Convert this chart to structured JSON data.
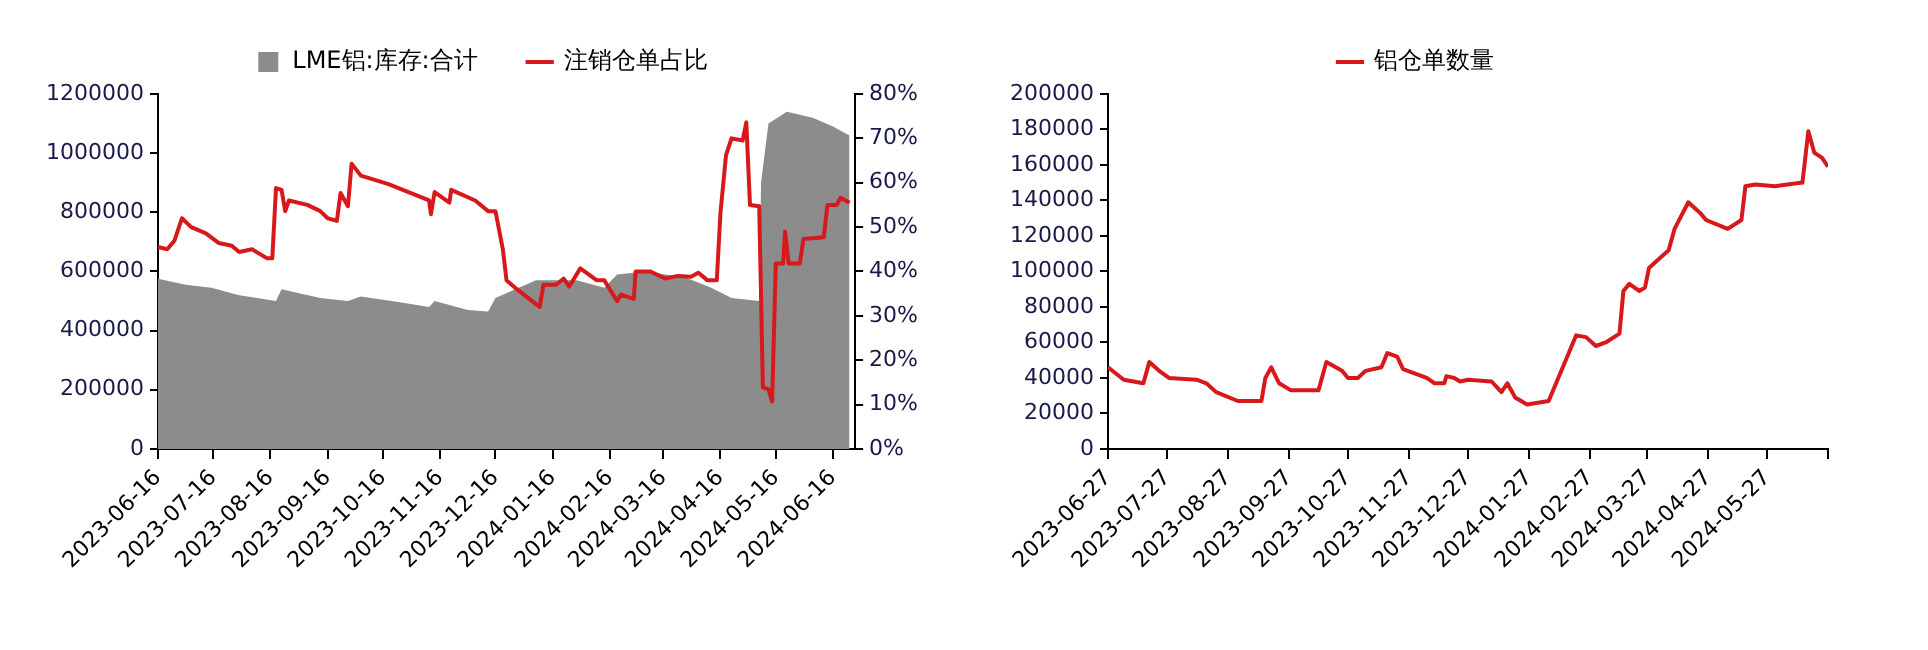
{
  "chart_data": [
    {
      "type": "line",
      "legend": "top",
      "grid": false,
      "marker": "none",
      "xlim": [
        "2023-06-16",
        "2024-06-28"
      ],
      "xticks": [
        "2023-06-16",
        "2023-07-16",
        "2023-08-16",
        "2023-09-16",
        "2023-10-16",
        "2023-11-16",
        "2023-12-16",
        "2024-01-16",
        "2024-02-16",
        "2024-03-16",
        "2024-04-16",
        "2024-05-16",
        "2024-06-16"
      ],
      "ylim": [
        0,
        1200000
      ],
      "yticks": [
        0,
        200000,
        400000,
        600000,
        800000,
        1000000,
        1200000
      ],
      "y2lim": [
        0,
        80
      ],
      "y2ticks": [
        {
          "value": 0,
          "label": "0%"
        },
        {
          "value": 10,
          "label": "10%"
        },
        {
          "value": 20,
          "label": "20%"
        },
        {
          "value": 30,
          "label": "30%"
        },
        {
          "value": 40,
          "label": "40%"
        },
        {
          "value": 50,
          "label": "50%"
        },
        {
          "value": 60,
          "label": "60%"
        },
        {
          "value": 70,
          "label": "70%"
        },
        {
          "value": 80,
          "label": "80%"
        }
      ],
      "series": [
        {
          "name": "LME铝:库存:合计",
          "type": "area",
          "color": "#8c8c8c",
          "x": [
            "2023-06-16",
            "2023-07-01",
            "2023-07-15",
            "2023-07-30",
            "2023-08-19",
            "2023-08-22",
            "2023-09-12",
            "2023-09-27",
            "2023-10-04",
            "2023-10-26",
            "2023-11-10",
            "2023-11-13",
            "2023-12-01",
            "2023-12-12",
            "2023-12-16",
            "2023-12-23",
            "2024-01-07",
            "2024-01-29",
            "2024-02-13",
            "2024-02-20",
            "2024-03-06",
            "2024-03-28",
            "2024-04-11",
            "2024-04-22",
            "2024-05-07",
            "2024-05-08",
            "2024-05-12",
            "2024-05-22",
            "2024-06-05",
            "2024-06-16",
            "2024-06-25"
          ],
          "values": [
            575000,
            555000,
            545000,
            520000,
            500000,
            540000,
            510000,
            500000,
            515000,
            495000,
            480000,
            500000,
            470000,
            465000,
            510000,
            530000,
            570000,
            570000,
            545000,
            590000,
            600000,
            580000,
            545000,
            510000,
            500000,
            900000,
            1100000,
            1140000,
            1120000,
            1090000,
            1060000
          ]
        },
        {
          "name": "注销仓单占比",
          "type": "line",
          "axis": "y2",
          "color": "#d7191c",
          "x": [
            "2023-06-16",
            "2023-06-21",
            "2023-06-25",
            "2023-06-29",
            "2023-07-04",
            "2023-07-12",
            "2023-07-19",
            "2023-07-26",
            "2023-07-30",
            "2023-08-06",
            "2023-08-14",
            "2023-08-17",
            "2023-08-19",
            "2023-08-22",
            "2023-08-24",
            "2023-08-26",
            "2023-09-05",
            "2023-09-12",
            "2023-09-16",
            "2023-09-21",
            "2023-09-23",
            "2023-09-27",
            "2023-09-29",
            "2023-10-04",
            "2023-10-19",
            "2023-11-10",
            "2023-11-11",
            "2023-11-13",
            "2023-11-21",
            "2023-11-22",
            "2023-12-05",
            "2023-12-12",
            "2023-12-16",
            "2023-12-20",
            "2023-12-22",
            "2023-12-27",
            "2024-01-09",
            "2024-01-11",
            "2024-01-18",
            "2024-01-22",
            "2024-01-25",
            "2024-01-31",
            "2024-02-09",
            "2024-02-13",
            "2024-02-20",
            "2024-02-22",
            "2024-02-29",
            "2024-03-01",
            "2024-03-09",
            "2024-03-17",
            "2024-03-24",
            "2024-03-31",
            "2024-04-04",
            "2024-04-09",
            "2024-04-14",
            "2024-04-16",
            "2024-04-19",
            "2024-04-22",
            "2024-04-28",
            "2024-04-30",
            "2024-05-02",
            "2024-05-07",
            "2024-05-09",
            "2024-05-12",
            "2024-05-14",
            "2024-05-16",
            "2024-05-20",
            "2024-05-21",
            "2024-05-23",
            "2024-05-29",
            "2024-05-31",
            "2024-06-11",
            "2024-06-13",
            "2024-06-18",
            "2024-06-20",
            "2024-06-25"
          ],
          "values": [
            45.5,
            45,
            47,
            52,
            50,
            48.6,
            46.4,
            45.8,
            44.4,
            45,
            43,
            43,
            58.8,
            58.4,
            53.6,
            56,
            55,
            53.6,
            52,
            51.4,
            57.7,
            54.7,
            64.3,
            61.6,
            59.7,
            56,
            52.9,
            57.9,
            55.5,
            58.4,
            56,
            53.6,
            53.6,
            45,
            38,
            36.2,
            32,
            37,
            37,
            38.4,
            36.6,
            40.7,
            38,
            38,
            33.3,
            34.8,
            33.8,
            40,
            40,
            38.4,
            39,
            38.8,
            39.7,
            38,
            38,
            53.2,
            66.2,
            70,
            69.5,
            73.6,
            55,
            54.7,
            13.9,
            13.5,
            10.7,
            41.8,
            41.8,
            49,
            41.8,
            41.8,
            47.3,
            47.7,
            55,
            55,
            56.6,
            55.5
          ]
        }
      ]
    },
    {
      "type": "line",
      "legend": "top",
      "grid": false,
      "marker": "none",
      "xlim": [
        "2023-06-27",
        "2024-06-27"
      ],
      "xticks": [
        "2023-06-27",
        "2023-07-27",
        "2023-08-27",
        "2023-09-27",
        "2023-10-27",
        "2023-11-27",
        "2023-12-27",
        "2024-01-27",
        "2024-02-27",
        "2024-03-27",
        "2024-04-27",
        "2024-05-27",
        {
          "value": "2024-06-27",
          "label": null
        }
      ],
      "ylim": [
        0,
        200000
      ],
      "yticks": [
        0,
        20000,
        40000,
        60000,
        80000,
        100000,
        120000,
        140000,
        160000,
        180000,
        200000
      ],
      "series": [
        {
          "name": "铝仓单数量",
          "type": "line",
          "color": "#d7191c",
          "x": [
            "2023-06-27",
            "2023-07-05",
            "2023-07-15",
            "2023-07-18",
            "2023-07-23",
            "2023-07-28",
            "2023-08-11",
            "2023-08-16",
            "2023-08-21",
            "2023-09-01",
            "2023-09-13",
            "2023-09-15",
            "2023-09-18",
            "2023-09-22",
            "2023-09-28",
            "2023-10-12",
            "2023-10-16",
            "2023-10-24",
            "2023-10-27",
            "2023-11-01",
            "2023-11-05",
            "2023-11-13",
            "2023-11-16",
            "2023-11-21",
            "2023-11-24",
            "2023-12-06",
            "2023-12-10",
            "2023-12-15",
            "2023-12-16",
            "2023-12-20",
            "2023-12-23",
            "2023-12-27",
            "2024-01-08",
            "2024-01-13",
            "2024-01-16",
            "2024-01-20",
            "2024-01-26",
            "2024-02-06",
            "2024-02-20",
            "2024-02-25",
            "2024-03-01",
            "2024-03-06",
            "2024-03-13",
            "2024-03-15",
            "2024-03-18",
            "2024-03-23",
            "2024-03-26",
            "2024-03-28",
            "2024-04-07",
            "2024-04-10",
            "2024-04-17",
            "2024-04-23",
            "2024-04-26",
            "2024-05-07",
            "2024-05-14",
            "2024-05-16",
            "2024-05-21",
            "2024-05-31",
            "2024-06-13",
            "2024-06-14",
            "2024-06-17",
            "2024-06-20",
            "2024-06-24",
            "2024-06-27"
          ],
          "values": [
            46000,
            39000,
            37000,
            49000,
            44000,
            40000,
            39000,
            37000,
            32000,
            27000,
            27000,
            40000,
            46000,
            37000,
            33000,
            33000,
            49000,
            44000,
            40000,
            40000,
            44000,
            46000,
            54000,
            52000,
            45000,
            40000,
            37000,
            37000,
            41000,
            40000,
            38000,
            39000,
            38000,
            32000,
            37000,
            29000,
            25000,
            27000,
            64000,
            63000,
            58000,
            60000,
            65000,
            89000,
            93000,
            89000,
            91000,
            102000,
            112000,
            124000,
            139000,
            133000,
            129000,
            124000,
            129000,
            148000,
            149000,
            148000,
            150000,
            150000,
            179000,
            167000,
            164000,
            159000
          ]
        }
      ]
    }
  ]
}
